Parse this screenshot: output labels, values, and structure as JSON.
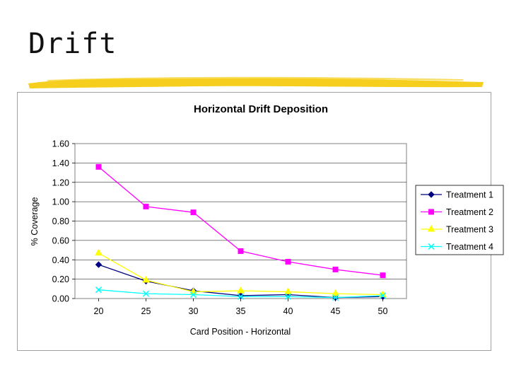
{
  "slide": {
    "title": "Drift",
    "accent_color": "#f6cf1e"
  },
  "chart_data": {
    "type": "line",
    "title": "Horizontal Drift Deposition",
    "xlabel": "Card Position - Horizontal",
    "ylabel": "% Coverage",
    "x": [
      20,
      25,
      30,
      35,
      40,
      45,
      50
    ],
    "x_tick_labels": [
      "20",
      "25",
      "30",
      "35",
      "40",
      "45",
      "50"
    ],
    "ylim": [
      0,
      1.6
    ],
    "y_tick_labels": [
      "0.00",
      "0.20",
      "0.40",
      "0.60",
      "0.80",
      "1.00",
      "1.20",
      "1.40",
      "1.60"
    ],
    "grid": "horizontal",
    "legend_position": "right",
    "series": [
      {
        "name": "Treatment 1",
        "color": "#000080",
        "marker": "diamond",
        "values": [
          0.35,
          0.18,
          0.08,
          0.03,
          0.04,
          0.01,
          0.02
        ]
      },
      {
        "name": "Treatment 2",
        "color": "#ff00ff",
        "marker": "square",
        "values": [
          1.36,
          0.95,
          0.89,
          0.49,
          0.38,
          0.3,
          0.24
        ]
      },
      {
        "name": "Treatment 3",
        "color": "#ffff00",
        "marker": "triangle",
        "values": [
          0.47,
          0.19,
          0.07,
          0.08,
          0.07,
          0.05,
          0.04
        ]
      },
      {
        "name": "Treatment 4",
        "color": "#00ffff",
        "marker": "x",
        "values": [
          0.09,
          0.05,
          0.04,
          0.02,
          0.02,
          0.01,
          0.03
        ]
      }
    ]
  }
}
